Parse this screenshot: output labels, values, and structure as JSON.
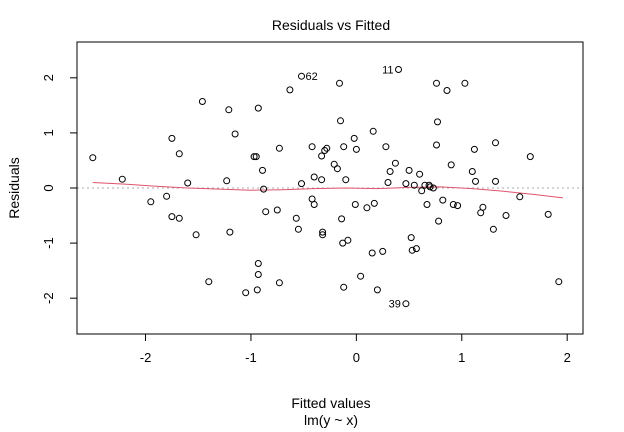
{
  "chart_data": {
    "type": "scatter",
    "title": "Residuals vs Fitted",
    "xlabel": "Fitted values",
    "xlabel_sub": "lm(y ~ x)",
    "ylabel": "Residuals",
    "xlim": [
      -2.65,
      2.15
    ],
    "ylim": [
      -2.65,
      2.65
    ],
    "xticks": [
      -2,
      -1,
      0,
      1,
      2
    ],
    "yticks": [
      -2,
      -1,
      0,
      1,
      2
    ],
    "tick_labels_x": [
      "-2",
      "-1",
      "0",
      "1",
      "2"
    ],
    "tick_labels_y": [
      "-2",
      "-1",
      "0",
      "1",
      "2"
    ],
    "reference_line_y": 0,
    "colors": {
      "points": "#000000",
      "smooth": "#df536b",
      "reference": "#a9a9a9"
    },
    "points": [
      [
        -2.5,
        0.55
      ],
      [
        -2.22,
        0.16
      ],
      [
        -1.95,
        -0.25
      ],
      [
        -1.8,
        -0.15
      ],
      [
        -1.75,
        0.9
      ],
      [
        -1.75,
        -0.52
      ],
      [
        -1.68,
        0.62
      ],
      [
        -1.68,
        -0.55
      ],
      [
        -1.6,
        0.09
      ],
      [
        -1.52,
        -0.85
      ],
      [
        -1.46,
        1.57
      ],
      [
        -1.4,
        -1.7
      ],
      [
        -1.23,
        0.13
      ],
      [
        -1.21,
        1.42
      ],
      [
        -1.2,
        -0.8
      ],
      [
        -1.15,
        0.98
      ],
      [
        -1.05,
        -1.9
      ],
      [
        -0.97,
        0.57
      ],
      [
        -0.95,
        0.57
      ],
      [
        -0.93,
        1.45
      ],
      [
        -0.93,
        -1.37
      ],
      [
        -0.93,
        -1.57
      ],
      [
        -0.94,
        -1.85
      ],
      [
        -0.89,
        0.32
      ],
      [
        -0.88,
        -0.02
      ],
      [
        -0.86,
        -0.43
      ],
      [
        -0.75,
        -0.4
      ],
      [
        -0.73,
        0.72
      ],
      [
        -0.73,
        -1.72
      ],
      [
        -0.63,
        1.78
      ],
      [
        -0.57,
        -0.55
      ],
      [
        -0.55,
        -0.75
      ],
      [
        -0.52,
        0.08
      ],
      [
        -0.52,
        2.03
      ],
      [
        -0.42,
        0.75
      ],
      [
        -0.42,
        -0.2
      ],
      [
        -0.4,
        -0.3
      ],
      [
        -0.4,
        0.2
      ],
      [
        -0.33,
        0.15
      ],
      [
        -0.33,
        0.58
      ],
      [
        -0.3,
        0.68
      ],
      [
        -0.28,
        0.72
      ],
      [
        -0.32,
        -0.8
      ],
      [
        -0.32,
        -0.85
      ],
      [
        -0.21,
        0.43
      ],
      [
        -0.18,
        0.35
      ],
      [
        -0.14,
        -0.56
      ],
      [
        -0.12,
        0.75
      ],
      [
        -0.15,
        1.22
      ],
      [
        -0.16,
        1.9
      ],
      [
        -0.13,
        -1.0
      ],
      [
        -0.12,
        -1.8
      ],
      [
        -0.1,
        0.15
      ],
      [
        -0.08,
        -0.95
      ],
      [
        -0.02,
        0.9
      ],
      [
        0.0,
        0.7
      ],
      [
        -0.01,
        -0.3
      ],
      [
        0.04,
        -1.6
      ],
      [
        0.1,
        -0.36
      ],
      [
        0.15,
        -1.18
      ],
      [
        0.17,
        -0.28
      ],
      [
        0.16,
        1.03
      ],
      [
        0.2,
        -1.85
      ],
      [
        0.25,
        -1.15
      ],
      [
        0.28,
        0.75
      ],
      [
        0.3,
        0.1
      ],
      [
        0.32,
        0.3
      ],
      [
        0.37,
        0.45
      ],
      [
        0.4,
        2.15
      ],
      [
        0.47,
        0.08
      ],
      [
        0.5,
        0.32
      ],
      [
        0.52,
        -0.9
      ],
      [
        0.53,
        -1.13
      ],
      [
        0.55,
        0.05
      ],
      [
        0.57,
        -1.1
      ],
      [
        0.6,
        0.25
      ],
      [
        0.62,
        -0.05
      ],
      [
        0.65,
        0.05
      ],
      [
        0.67,
        -0.3
      ],
      [
        0.69,
        0.05
      ],
      [
        0.7,
        0.02
      ],
      [
        0.73,
        0.0
      ],
      [
        0.76,
        1.9
      ],
      [
        0.76,
        0.78
      ],
      [
        0.77,
        1.2
      ],
      [
        0.78,
        -0.6
      ],
      [
        0.82,
        -0.22
      ],
      [
        0.86,
        1.77
      ],
      [
        0.9,
        0.42
      ],
      [
        0.92,
        -0.3
      ],
      [
        0.96,
        -0.32
      ],
      [
        1.03,
        1.9
      ],
      [
        1.1,
        0.3
      ],
      [
        1.12,
        0.7
      ],
      [
        1.13,
        0.12
      ],
      [
        1.18,
        -0.45
      ],
      [
        1.2,
        -0.35
      ],
      [
        1.3,
        -0.75
      ],
      [
        1.32,
        0.82
      ],
      [
        1.32,
        0.12
      ],
      [
        1.42,
        -0.5
      ],
      [
        1.55,
        -0.16
      ],
      [
        1.65,
        0.57
      ],
      [
        1.82,
        -0.48
      ],
      [
        1.92,
        -1.7
      ],
      [
        0.47,
        -2.1
      ]
    ],
    "smooth": [
      [
        -2.5,
        0.1
      ],
      [
        -2.2,
        0.07
      ],
      [
        -1.9,
        0.03
      ],
      [
        -1.6,
        0.0
      ],
      [
        -1.3,
        -0.02
      ],
      [
        -1.0,
        -0.04
      ],
      [
        -0.7,
        -0.03
      ],
      [
        -0.4,
        -0.01
      ],
      [
        -0.1,
        0.0
      ],
      [
        0.2,
        -0.01
      ],
      [
        0.5,
        0.01
      ],
      [
        0.8,
        0.02
      ],
      [
        1.1,
        -0.01
      ],
      [
        1.4,
        -0.06
      ],
      [
        1.7,
        -0.12
      ],
      [
        1.96,
        -0.18
      ]
    ],
    "annotations": [
      {
        "label": "62",
        "x": -0.52,
        "y": 2.03
      },
      {
        "label": "11",
        "x": 0.4,
        "y": 2.15
      },
      {
        "label": "39",
        "x": 0.47,
        "y": -2.1
      }
    ]
  }
}
